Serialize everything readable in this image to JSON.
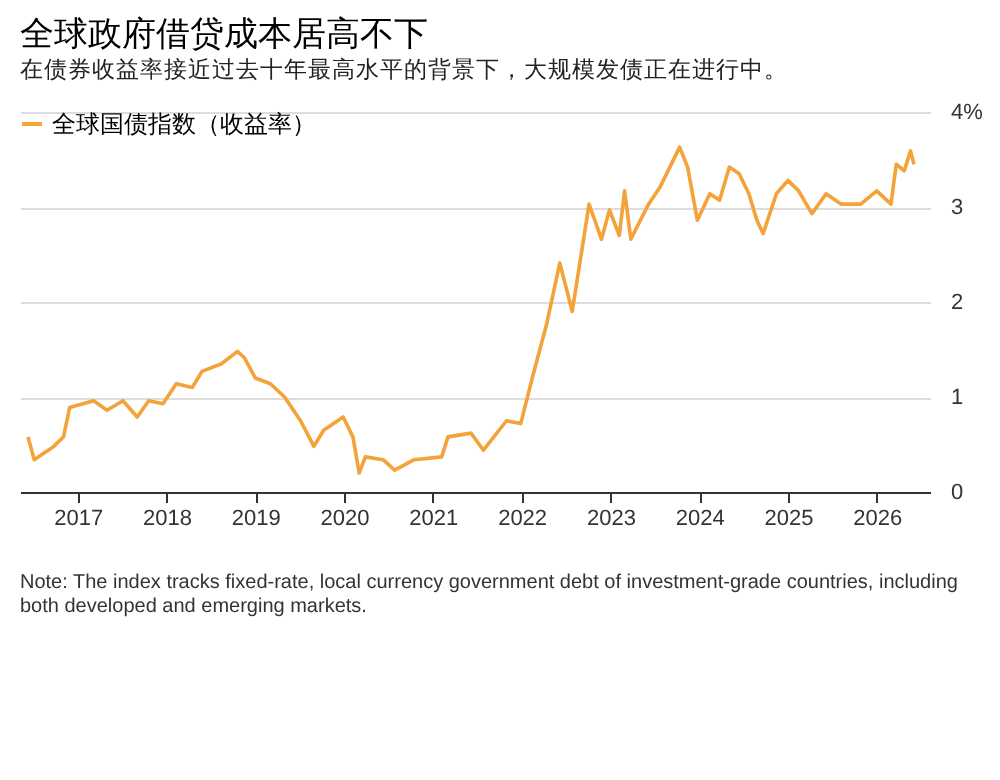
{
  "chart_data": {
    "type": "line",
    "title": "全球政府借贷成本居高不下",
    "subtitle": "在债券收益率接近过去十年最高水平的背景下，大规模发债正在进行中。",
    "x": [
      2016.44,
      2016.51,
      2016.73,
      2016.84,
      2016.91,
      2017.18,
      2017.33,
      2017.51,
      2017.67,
      2017.8,
      2017.96,
      2018.11,
      2018.29,
      2018.4,
      2018.62,
      2018.8,
      2018.88,
      2019.0,
      2019.17,
      2019.33,
      2019.51,
      2019.66,
      2019.77,
      2019.99,
      2020.1,
      2020.17,
      2020.24,
      2020.44,
      2020.57,
      2020.79,
      2021.1,
      2021.17,
      2021.43,
      2021.57,
      2021.83,
      2021.99,
      2022.12,
      2022.28,
      2022.43,
      2022.57,
      2022.76,
      2022.9,
      2022.99,
      2023.1,
      2023.16,
      2023.23,
      2023.43,
      2023.56,
      2023.67,
      2023.78,
      2023.87,
      2023.98,
      2024.12,
      2024.23,
      2024.34,
      2024.45,
      2024.56,
      2024.65,
      2024.72,
      2024.87,
      2025.0,
      2025.12,
      2025.27,
      2025.43,
      2025.6,
      2025.82,
      2026.0,
      2026.16,
      2026.22,
      2026.31,
      2026.38,
      2026.42
    ],
    "series": [
      {
        "name": "全球国债指数（收益率）",
        "color": "#f4a23a",
        "values": [
          0.58,
          0.34,
          0.48,
          0.58,
          0.89,
          0.96,
          0.86,
          0.96,
          0.79,
          0.96,
          0.93,
          1.14,
          1.1,
          1.27,
          1.35,
          1.48,
          1.41,
          1.2,
          1.14,
          1.0,
          0.75,
          0.48,
          0.65,
          0.79,
          0.58,
          0.2,
          0.37,
          0.34,
          0.23,
          0.34,
          0.37,
          0.58,
          0.62,
          0.44,
          0.75,
          0.72,
          1.2,
          1.76,
          2.41,
          1.9,
          3.03,
          2.66,
          2.97,
          2.7,
          3.17,
          2.66,
          3.03,
          3.21,
          3.42,
          3.63,
          3.42,
          2.86,
          3.14,
          3.07,
          3.42,
          3.35,
          3.14,
          2.86,
          2.72,
          3.14,
          3.28,
          3.17,
          2.93,
          3.14,
          3.03,
          3.03,
          3.17,
          3.03,
          3.45,
          3.38,
          3.59,
          3.45
        ]
      }
    ],
    "xlim": [
      2016.35,
      2026.6
    ],
    "xticks": [
      2017,
      2018,
      2019,
      2020,
      2021,
      2022,
      2023,
      2024,
      2025,
      2026
    ],
    "ylim": [
      0,
      4
    ],
    "yticks": [
      0,
      1,
      2,
      3,
      {
        "value": 4,
        "label": "4%"
      }
    ],
    "grid": "y",
    "legend": "top left",
    "annotations": [
      "Note: The index tracks fixed-rate, local currency government debt of investment-grade countries, including both developed and emerging markets."
    ]
  }
}
